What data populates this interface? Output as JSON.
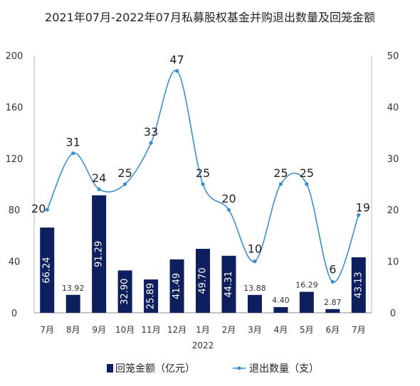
{
  "chart_data": {
    "type": "bar+line",
    "title": "2021年07月-2022年07月私募股权基金并购退出数量及回笼金额",
    "categories": [
      "7月",
      "8月",
      "9月",
      "10月",
      "11月",
      "12月",
      "1月",
      "2月",
      "3月",
      "4月",
      "5月",
      "6月",
      "7月"
    ],
    "x_sublabel": "2022",
    "series": [
      {
        "name": "回笼金额（亿元）",
        "type": "bar",
        "axis": "left",
        "values": [
          66.24,
          13.92,
          91.29,
          32.9,
          25.89,
          41.49,
          49.7,
          44.31,
          13.88,
          4.4,
          16.29,
          2.87,
          43.13
        ],
        "labels": [
          "66.24",
          "13.92",
          "91.29",
          "32.90",
          "25.89",
          "41.49",
          "49.70",
          "44.31",
          "13.88",
          "4.40",
          "16.29",
          "2.87",
          "43.13"
        ],
        "color": "#0d1f5c"
      },
      {
        "name": "退出数量（支）",
        "type": "line",
        "axis": "right",
        "values": [
          20,
          31,
          24,
          25,
          33,
          47,
          25,
          20,
          10,
          25,
          25,
          6,
          19
        ],
        "labels": [
          "20",
          "31",
          "24",
          "25",
          "33",
          "47",
          "25",
          "20",
          "10",
          "25",
          "25",
          "6",
          "19"
        ],
        "color": "#3a8fd1"
      }
    ],
    "left_axis": {
      "min": 0,
      "max": 200,
      "ticks": [
        "0",
        "40",
        "80",
        "120",
        "160",
        "200"
      ]
    },
    "right_axis": {
      "min": 0,
      "max": 50,
      "ticks": [
        "0",
        "10",
        "20",
        "30",
        "40",
        "50"
      ]
    },
    "legend_position": "bottom",
    "grid": false
  }
}
